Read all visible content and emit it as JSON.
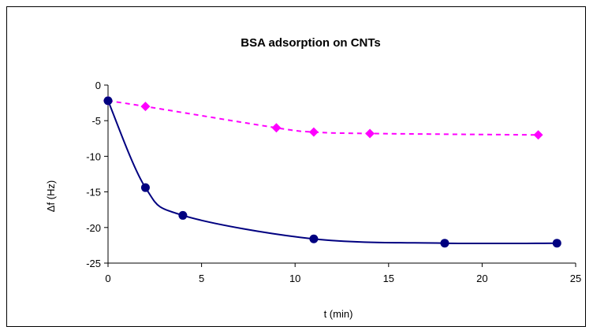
{
  "chart_data": {
    "type": "line",
    "title": "BSA adsorption on CNTs",
    "xlabel": "t (min)",
    "ylabel": "Δf (Hz)",
    "xlim": [
      0,
      25
    ],
    "ylim": [
      -25,
      0
    ],
    "x_ticks": [
      0,
      5,
      10,
      15,
      20,
      25
    ],
    "y_ticks": [
      0,
      -5,
      -10,
      -15,
      -20,
      -25
    ],
    "grid": false,
    "legend": "none",
    "series": [
      {
        "color": "#FF00FF",
        "marker": "diamond",
        "line_style": "dashed",
        "x": [
          0,
          2,
          9,
          11,
          14,
          23
        ],
        "y": [
          -2.2,
          -3.0,
          -6.0,
          -6.6,
          -6.8,
          -7.0
        ]
      },
      {
        "color": "#000080",
        "marker": "circle",
        "line_style": "solid",
        "x": [
          0,
          2,
          4,
          11,
          18,
          24
        ],
        "y": [
          -2.2,
          -14.4,
          -18.3,
          -21.6,
          -22.2,
          -22.2
        ]
      }
    ]
  }
}
